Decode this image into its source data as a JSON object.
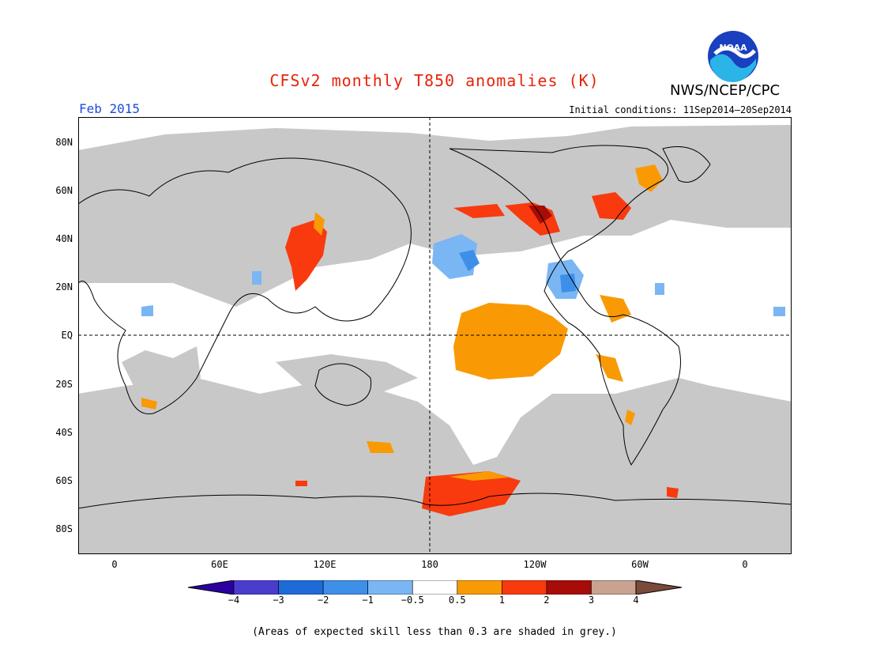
{
  "title": "CFSv2 monthly T850 anomalies (K)",
  "period": "Feb 2015",
  "initial_conditions": "Initial conditions: 11Sep2014–20Sep2014",
  "agency": "NWS/NCEP/CPC",
  "logo_text": "NOAA",
  "lat_labels": [
    "80N",
    "60N",
    "40N",
    "20N",
    "EQ",
    "20S",
    "40S",
    "60S",
    "80S"
  ],
  "lon_labels": [
    "0",
    "60E",
    "120E",
    "180",
    "120W",
    "60W",
    "0"
  ],
  "colorbar": {
    "labels": [
      "−4",
      "−3",
      "−2",
      "−1",
      "−0.5",
      "0.5",
      "1",
      "2",
      "3",
      "4"
    ],
    "colors": [
      "#2a00a0",
      "#4a3ccc",
      "#1e6ad8",
      "#3e8fe8",
      "#7ab6f4",
      "#ffffff",
      "#f99a05",
      "#f83a0e",
      "#a70c08",
      "#c9a292",
      "#7a4a3a"
    ]
  },
  "colors": {
    "low_skill_grey": "#c8c8c8",
    "title_red": "#e8230a",
    "period_blue": "#1e4be0"
  },
  "footnote": "(Areas of expected skill less than 0.3 are shaded in grey.)"
}
